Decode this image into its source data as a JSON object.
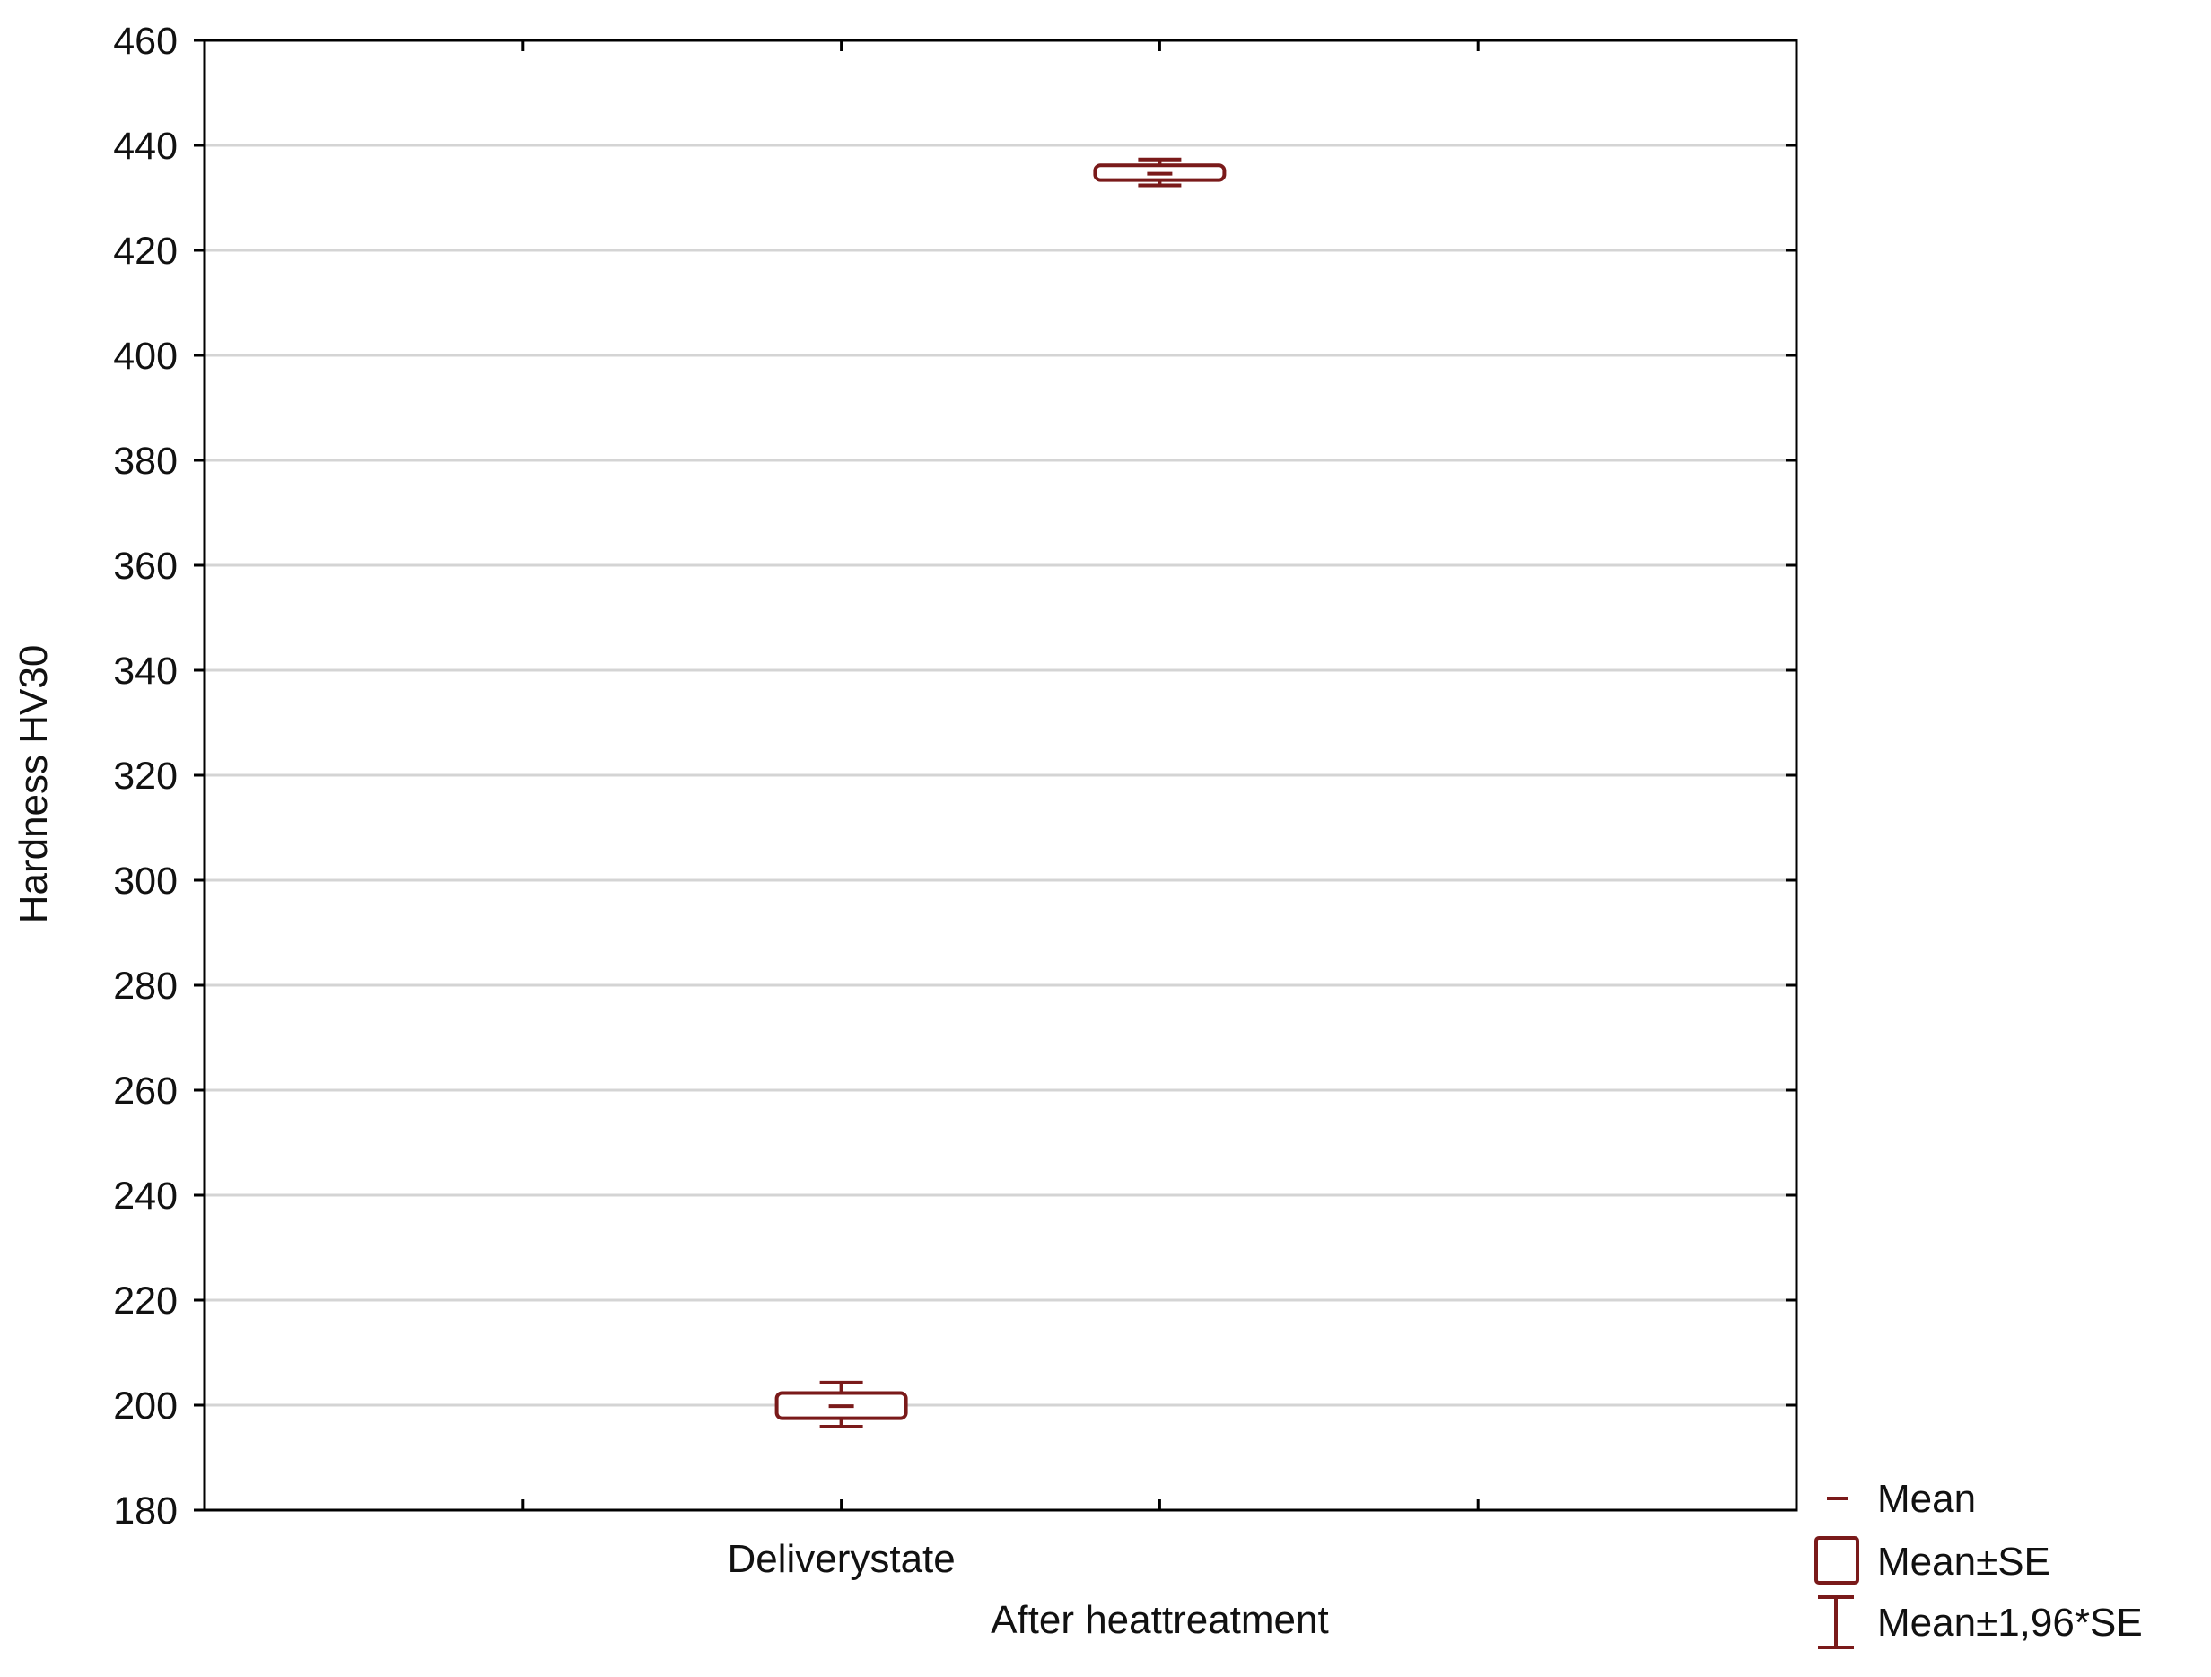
{
  "chart_data": {
    "type": "box",
    "title": "",
    "xlabel": "",
    "ylabel": "Hardness HV30",
    "ylim": [
      180,
      460
    ],
    "yticks": [
      180,
      200,
      220,
      240,
      260,
      280,
      300,
      320,
      340,
      360,
      380,
      400,
      420,
      440,
      460
    ],
    "grid": true,
    "legend_position": "bottom-right",
    "categories": [
      "Delivery state",
      "After heat treatment"
    ],
    "category_labels": [
      "Deliverystate",
      "After heattreatment"
    ],
    "series": [
      {
        "category": "Delivery state",
        "mean": 199.8,
        "mean_minus_se": 197.5,
        "mean_plus_se": 202.3,
        "mean_minus_1_96_se": 195.9,
        "mean_plus_1_96_se": 204.3
      },
      {
        "category": "After heat treatment",
        "mean": 434.6,
        "mean_minus_se": 433.4,
        "mean_plus_se": 436.2,
        "mean_minus_1_96_se": 432.4,
        "mean_plus_1_96_se": 437.3
      }
    ],
    "legend": [
      {
        "symbol": "mean-dash",
        "label": "Mean"
      },
      {
        "symbol": "box",
        "label": "Mean±SE"
      },
      {
        "symbol": "whisker",
        "label": "Mean±1,96*SE"
      }
    ],
    "colors": {
      "box": "#7a1a1a",
      "grid": "#d4d4d4",
      "axis": "#000000"
    }
  }
}
